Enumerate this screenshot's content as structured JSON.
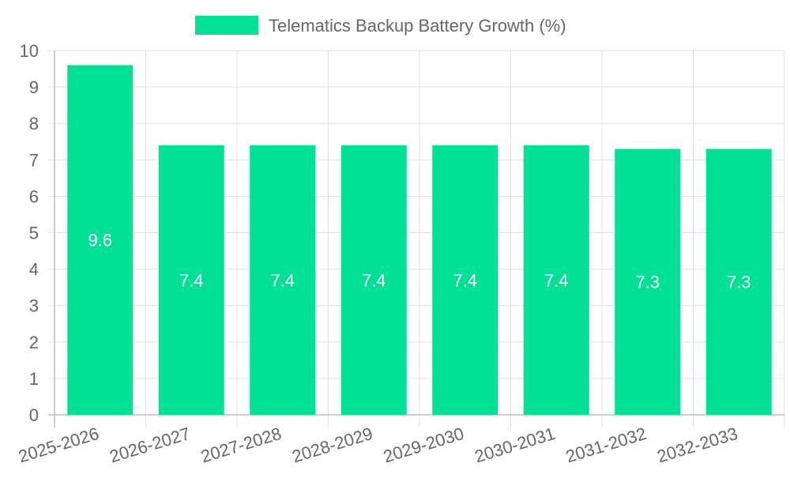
{
  "chart_data": {
    "type": "bar",
    "categories": [
      "2025-2026",
      "2026-2027",
      "2027-2028",
      "2028-2029",
      "2029-2030",
      "2030-2031",
      "2031-2032",
      "2032-2033"
    ],
    "series": [
      {
        "name": "Telematics Backup Battery Growth (%)",
        "values": [
          9.6,
          7.4,
          7.4,
          7.4,
          7.4,
          7.4,
          7.3,
          7.3
        ],
        "color": "#00e196"
      }
    ],
    "ylim": [
      0,
      10
    ],
    "yticks": [
      "0",
      "1",
      "2",
      "3",
      "4",
      "5",
      "6",
      "7",
      "8",
      "9",
      "10"
    ],
    "value_labels": [
      "9.6",
      "7.4",
      "7.4",
      "7.4",
      "7.4",
      "7.4",
      "7.3",
      "7.3"
    ],
    "legend": {
      "position": "top",
      "label": "Telematics Backup Battery Growth (%)"
    },
    "grid": true,
    "colors": {
      "grid": "#e1e1e1",
      "axis": "#bdbdbd",
      "tick_text": "#666666",
      "bar_label": "#ffffff"
    }
  }
}
